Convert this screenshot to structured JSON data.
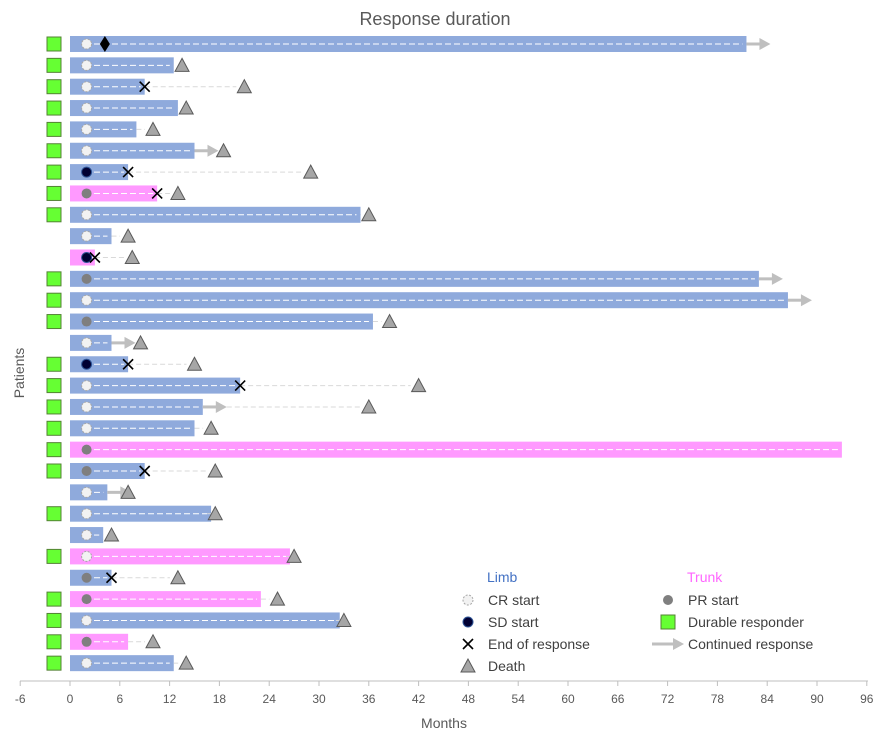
{
  "chart_data": {
    "type": "swimmer",
    "title": "Response duration",
    "xlabel": "Months",
    "ylabel": "Patients",
    "xlim": [
      -6,
      96
    ],
    "xticks": [
      "-6",
      "0",
      "6",
      "12",
      "18",
      "24",
      "30",
      "36",
      "42",
      "48",
      "54",
      "60",
      "66",
      "72",
      "78",
      "84",
      "90",
      "96"
    ],
    "colors": {
      "limb": "#8faadc",
      "trunk": "#ff99ff",
      "durable": "#66ff33",
      "death": "#a6a6a6",
      "arrow": "#bfbfbf",
      "pr": "#7f7f7f",
      "sd": "#000033",
      "text": "#595959",
      "limb_head": "#4472c4",
      "trunk_head": "#ff66ff"
    },
    "patients": [
      {
        "site": "limb",
        "durable": true,
        "start_type": "CR",
        "duration": 81.5,
        "continued": true,
        "diamond": 4.2
      },
      {
        "site": "limb",
        "durable": true,
        "start_type": "CR",
        "duration": 12.5,
        "death": 13.5
      },
      {
        "site": "limb",
        "durable": true,
        "start_type": "CR",
        "duration": 9,
        "end": 9,
        "death": 21
      },
      {
        "site": "limb",
        "durable": true,
        "start_type": "CR",
        "duration": 13,
        "death": 14
      },
      {
        "site": "limb",
        "durable": true,
        "start_type": "CR",
        "duration": 8,
        "death": 10
      },
      {
        "site": "limb",
        "durable": true,
        "start_type": "CR",
        "duration": 15,
        "continued": true,
        "death": 18.5
      },
      {
        "site": "limb",
        "durable": true,
        "start_type": "SD",
        "duration": 7,
        "end": 7,
        "death": 29
      },
      {
        "site": "trunk",
        "durable": true,
        "start_type": "PR",
        "duration": 10.5,
        "end": 10.5,
        "death": 13
      },
      {
        "site": "limb",
        "durable": true,
        "start_type": "CR",
        "duration": 35,
        "death": 36
      },
      {
        "site": "limb",
        "durable": false,
        "start_type": "CR",
        "duration": 5,
        "death": 7
      },
      {
        "site": "trunk",
        "durable": false,
        "start_type": "SD",
        "duration": 3,
        "end": 3,
        "death": 7.5
      },
      {
        "site": "limb",
        "durable": true,
        "start_type": "PR",
        "duration": 83,
        "continued": true
      },
      {
        "site": "limb",
        "durable": true,
        "start_type": "CR",
        "duration": 86.5,
        "continued": true
      },
      {
        "site": "limb",
        "durable": true,
        "start_type": "PR",
        "duration": 36.5,
        "death": 38.5
      },
      {
        "site": "limb",
        "durable": false,
        "start_type": "CR",
        "duration": 5,
        "continued": true,
        "death": 8.5
      },
      {
        "site": "limb",
        "durable": true,
        "start_type": "SD",
        "duration": 7,
        "end": 7,
        "death": 15
      },
      {
        "site": "limb",
        "durable": true,
        "start_type": "CR",
        "duration": 20.5,
        "end": 20.5,
        "death": 42
      },
      {
        "site": "limb",
        "durable": true,
        "start_type": "CR",
        "duration": 16,
        "continued": true,
        "death": 36
      },
      {
        "site": "limb",
        "durable": true,
        "start_type": "CR",
        "duration": 15,
        "death": 17
      },
      {
        "site": "trunk",
        "durable": true,
        "start_type": "PR",
        "duration": 93
      },
      {
        "site": "limb",
        "durable": true,
        "start_type": "PR",
        "duration": 9,
        "end": 9,
        "death": 17.5
      },
      {
        "site": "limb",
        "durable": false,
        "start_type": "CR",
        "duration": 4.5,
        "continued": true,
        "death": 7
      },
      {
        "site": "limb",
        "durable": true,
        "start_type": "CR",
        "duration": 17,
        "death": 17.5
      },
      {
        "site": "limb",
        "durable": false,
        "start_type": "CR",
        "duration": 4,
        "death": 5
      },
      {
        "site": "trunk",
        "durable": true,
        "start_type": "CR",
        "duration": 26.5,
        "death": 27
      },
      {
        "site": "limb",
        "durable": false,
        "start_type": "PR",
        "duration": 5,
        "end": 5,
        "death": 13
      },
      {
        "site": "trunk",
        "durable": true,
        "start_type": "PR",
        "duration": 23,
        "death": 25
      },
      {
        "site": "limb",
        "durable": true,
        "start_type": "CR",
        "duration": 32.5,
        "death": 33
      },
      {
        "site": "trunk",
        "durable": true,
        "start_type": "PR",
        "duration": 7,
        "death": 10
      },
      {
        "site": "limb",
        "durable": true,
        "start_type": "CR",
        "duration": 12.5,
        "death": 14
      }
    ],
    "legend": {
      "limb_header": "Limb",
      "trunk_header": "Trunk",
      "cr": "CR start",
      "sd": "SD start",
      "end": "End of response",
      "death": "Death",
      "pr": "PR start",
      "durable": "Durable responder",
      "continued": "Continued response"
    }
  }
}
